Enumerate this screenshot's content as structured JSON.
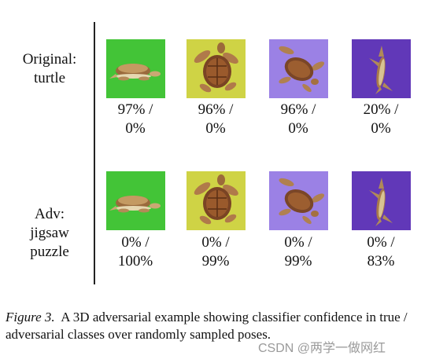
{
  "rows": [
    {
      "label_lines": [
        "Original:",
        "turtle"
      ],
      "items": [
        {
          "bg_color": "#43c437",
          "pose": "side",
          "confidence_lines": [
            "97% /",
            "0%"
          ]
        },
        {
          "bg_color": "#cfd345",
          "pose": "top",
          "confidence_lines": [
            "96% /",
            "0%"
          ]
        },
        {
          "bg_color": "#9b81e5",
          "pose": "diagonal",
          "confidence_lines": [
            "96% /",
            "0%"
          ]
        },
        {
          "bg_color": "#6138b8",
          "pose": "edge",
          "confidence_lines": [
            "20% /",
            "0%"
          ]
        }
      ]
    },
    {
      "label_lines": [
        "Adv:",
        "jigsaw",
        "puzzle"
      ],
      "items": [
        {
          "bg_color": "#43c437",
          "pose": "side",
          "confidence_lines": [
            "0% /",
            "100%"
          ]
        },
        {
          "bg_color": "#cfd345",
          "pose": "top",
          "confidence_lines": [
            "0% /",
            "99%"
          ]
        },
        {
          "bg_color": "#9b81e5",
          "pose": "diagonal",
          "confidence_lines": [
            "0% /",
            "99%"
          ]
        },
        {
          "bg_color": "#6138b8",
          "pose": "edge",
          "confidence_lines": [
            "0% /",
            "83%"
          ]
        }
      ]
    }
  ],
  "caption": {
    "figure_label": "Figure 3.",
    "text": "A 3D adversarial example showing classifier confidence in true / adversarial classes over randomly sampled poses."
  },
  "watermark": "CSDN @两学一做网红"
}
